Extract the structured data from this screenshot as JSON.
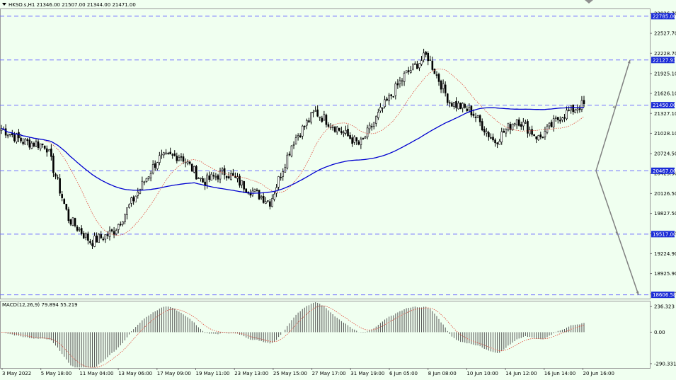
{
  "header": {
    "symbol_label": "HKSO.s,H1",
    "ohlc_text": "21346.00 21507.00 21344.00 21471.00",
    "menu_icon": "triangle-down-icon"
  },
  "macd": {
    "label": "MACD(12,26,9) 79.894 55.219",
    "scale_labels": [
      "236.323",
      "0.00",
      "-290.331"
    ],
    "scale_values": [
      236.323,
      0,
      -290.331
    ]
  },
  "colors": {
    "background": "#f0fff0",
    "candle": "#000000",
    "ma_slow": "#0000d0",
    "ma_fast": "#e04a3a",
    "level_line": "#6f6fff",
    "level_box": "#1a2bd6",
    "arrow": "#808080"
  },
  "price_axis": {
    "labels": [
      "22826.70",
      "22527.70",
      "22228.70",
      "21925.10",
      "21626.10",
      "21327.10",
      "21028.10",
      "20724.50",
      "20425.50",
      "20126.50",
      "19827.50",
      "19524.00",
      "19224.90",
      "18925.90",
      "18622.30"
    ],
    "values": [
      22826.7,
      22527.7,
      22228.7,
      21925.1,
      21626.1,
      21327.1,
      21028.1,
      20724.5,
      20425.5,
      20126.5,
      19827.5,
      19524.0,
      19224.9,
      18925.9,
      18622.3
    ]
  },
  "levels": [
    {
      "label": "22785.00",
      "value": 22785.0
    },
    {
      "label": "22127.93",
      "value": 22127.93
    },
    {
      "label": "21450.00",
      "value": 21450.0
    },
    {
      "label": "20467.00",
      "value": 20467.0
    },
    {
      "label": "19517.00",
      "value": 19517.0
    },
    {
      "label": "18606.58",
      "value": 18606.58
    }
  ],
  "time_axis": [
    "3 May 2022",
    "5 May 18:00",
    "11 May 04:00",
    "13 May 06:00",
    "17 May 09:00",
    "19 May 11:00",
    "23 May 13:00",
    "25 May 15:00",
    "27 May 17:00",
    "31 May 19:00",
    "6 Jun 05:00",
    "8 Jun 08:00",
    "10 Jun 10:00",
    "14 Jun 12:00",
    "16 Jun 14:00",
    "20 Jun 16:00"
  ],
  "chart_data": {
    "type": "candlestick",
    "title": "HKSO.s,H1",
    "x": [
      "3 May 2022",
      "5 May 18:00",
      "11 May 04:00",
      "13 May 06:00",
      "17 May 09:00",
      "19 May 11:00",
      "23 May 13:00",
      "25 May 15:00",
      "27 May 17:00",
      "31 May 19:00",
      "6 Jun 05:00",
      "8 Jun 08:00",
      "10 Jun 10:00",
      "14 Jun 12:00",
      "16 Jun 14:00",
      "20 Jun 16:00"
    ],
    "close_path": [
      21100,
      20900,
      20850,
      19750,
      19400,
      19550,
      20100,
      20650,
      20700,
      20300,
      20450,
      20200,
      20000,
      20900,
      21350,
      21100,
      20850,
      21400,
      21900,
      22200,
      21500,
      21350,
      20900,
      21250,
      20950,
      21300,
      21471
    ],
    "ylim": [
      18550,
      22900
    ],
    "macd_ylim": [
      -330,
      290
    ]
  }
}
